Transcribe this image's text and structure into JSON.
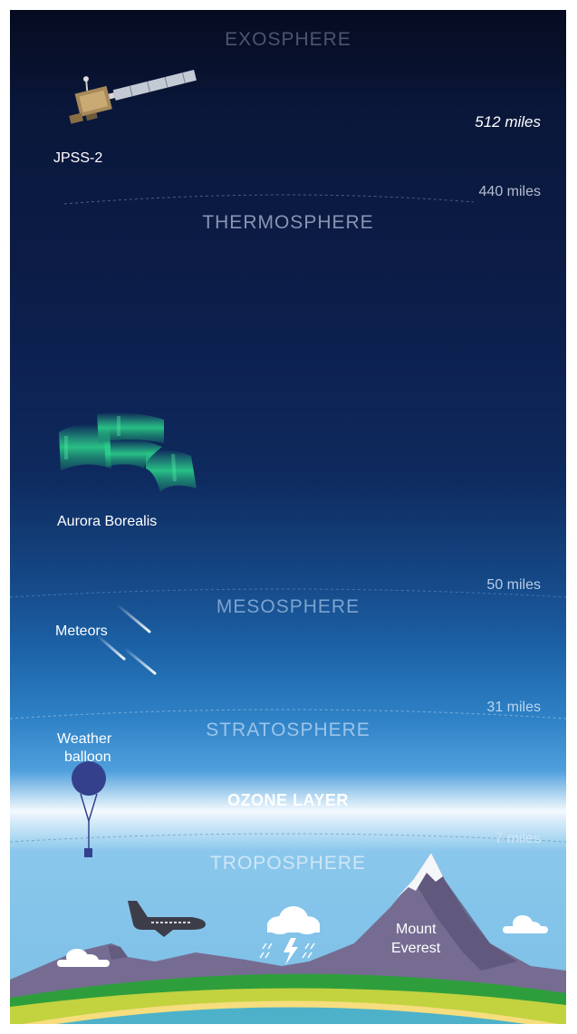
{
  "layers": {
    "exosphere": "EXOSPHERE",
    "thermosphere": "THERMOSPHERE",
    "mesosphere": "MESOSPHERE",
    "stratosphere": "STRATOSPHERE",
    "ozone": "OZONE LAYER",
    "troposphere": "TROPOSPHERE"
  },
  "altitudes": {
    "satellite": "512 miles",
    "exo_boundary": "440 miles",
    "thermo_boundary": "50 miles",
    "meso_boundary": "31 miles",
    "strato_boundary": "7 miles"
  },
  "items": {
    "satellite": "JPSS-2",
    "aurora": "Aurora Borealis",
    "meteors": "Meteors",
    "balloon_line1": "Weather",
    "balloon_line2": "balloon",
    "everest_line1": "Mount",
    "everest_line2": "Everest"
  },
  "colors": {
    "space_top": "#060c22",
    "upper_sky": "#0c1e4a",
    "mid_sky": "#1b64ab",
    "low_sky": "#3d95d6",
    "ozone": "#f1f7fc",
    "troposphere": "#7cc0e6",
    "mountain": "#766c91",
    "grass": "#2e9e3c",
    "sand": "#f6dd7e",
    "water": "#4db2c9"
  }
}
